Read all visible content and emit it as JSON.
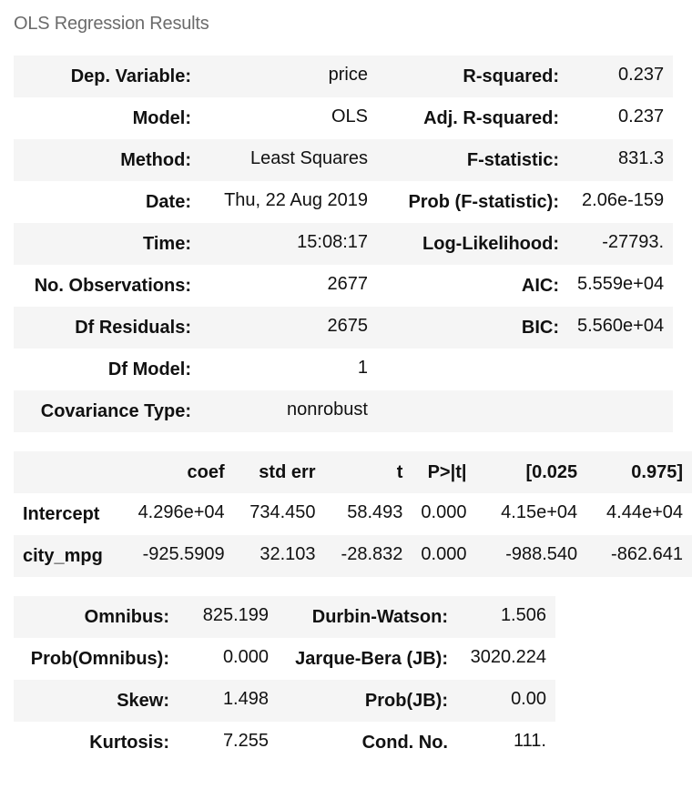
{
  "caption": "OLS Regression Results",
  "summary": [
    {
      "l1": "Dep. Variable:",
      "v1": "price",
      "l2": "R-squared:",
      "v2": "0.237"
    },
    {
      "l1": "Model:",
      "v1": "OLS",
      "l2": "Adj. R-squared:",
      "v2": "0.237"
    },
    {
      "l1": "Method:",
      "v1": "Least Squares",
      "l2": "F-statistic:",
      "v2": "831.3"
    },
    {
      "l1": "Date:",
      "v1": "Thu, 22 Aug 2019",
      "l2": "Prob (F-statistic):",
      "v2": "2.06e-159"
    },
    {
      "l1": "Time:",
      "v1": "15:08:17",
      "l2": "Log-Likelihood:",
      "v2": "-27793."
    },
    {
      "l1": "No. Observations:",
      "v1": "2677",
      "l2": "AIC:",
      "v2": "5.559e+04"
    },
    {
      "l1": "Df Residuals:",
      "v1": "2675",
      "l2": "BIC:",
      "v2": "5.560e+04"
    },
    {
      "l1": "Df Model:",
      "v1": "1",
      "l2": "",
      "v2": ""
    },
    {
      "l1": "Covariance Type:",
      "v1": "nonrobust",
      "l2": "",
      "v2": ""
    }
  ],
  "coef_table": {
    "headers": [
      "",
      "coef",
      "std err",
      "t",
      "P>|t|",
      "[0.025",
      "0.975]"
    ],
    "rows": [
      [
        "Intercept",
        "4.296e+04",
        "734.450",
        "58.493",
        "0.000",
        "4.15e+04",
        "4.44e+04"
      ],
      [
        "city_mpg",
        "-925.5909",
        "32.103",
        "-28.832",
        "0.000",
        "-988.540",
        "-862.641"
      ]
    ]
  },
  "diagnostics": [
    {
      "l1": "Omnibus:",
      "v1": "825.199",
      "l2": "Durbin-Watson:",
      "v2": "1.506"
    },
    {
      "l1": "Prob(Omnibus):",
      "v1": "0.000",
      "l2": "Jarque-Bera (JB):",
      "v2": "3020.224"
    },
    {
      "l1": "Skew:",
      "v1": "1.498",
      "l2": "Prob(JB):",
      "v2": "0.00"
    },
    {
      "l1": "Kurtosis:",
      "v1": "7.255",
      "l2": "Cond. No.",
      "v2": "111."
    }
  ]
}
